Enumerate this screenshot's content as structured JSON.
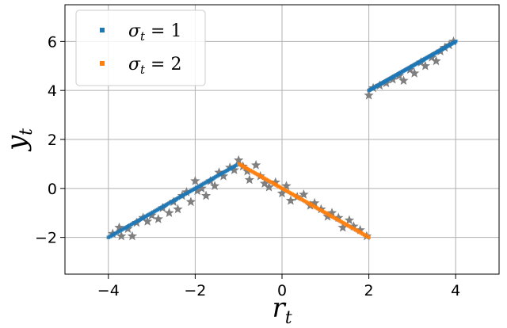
{
  "chart_data": {
    "type": "scatter",
    "title": "",
    "xlabel": {
      "base": "r",
      "sub": "t"
    },
    "ylabel": {
      "base": "y",
      "sub": "t"
    },
    "xlim": [
      -5,
      5
    ],
    "ylim": [
      -3.5,
      7.5
    ],
    "grid": true,
    "xticks": [
      {
        "value": -4,
        "label": "−4"
      },
      {
        "value": -2,
        "label": "−2"
      },
      {
        "value": 0,
        "label": "0"
      },
      {
        "value": 2,
        "label": "2"
      },
      {
        "value": 4,
        "label": "4"
      }
    ],
    "yticks": [
      {
        "value": -2,
        "label": "−2"
      },
      {
        "value": 0,
        "label": "0"
      },
      {
        "value": 2,
        "label": "2"
      },
      {
        "value": 4,
        "label": "4"
      },
      {
        "value": 6,
        "label": "6"
      }
    ],
    "legend": {
      "placement": "top-left",
      "entries": [
        {
          "label_base": "σ",
          "label_sub": "t",
          "label_rest": " = 1",
          "color": "#1f77b4"
        },
        {
          "label_base": "σ",
          "label_sub": "t",
          "label_rest": " = 2",
          "color": "#ff7f0e"
        }
      ]
    },
    "series": [
      {
        "name": "σt = 1",
        "color": "#1f77b4",
        "kind": "fitted-line",
        "segments": [
          {
            "x": [
              -4.0,
              -1.0
            ],
            "y": [
              -2.0,
              1.0
            ]
          },
          {
            "x": [
              2.0,
              4.0
            ],
            "y": [
              4.0,
              6.0
            ]
          }
        ]
      },
      {
        "name": "σt = 2",
        "color": "#ff7f0e",
        "kind": "fitted-line",
        "segments": [
          {
            "x": [
              -1.0,
              2.0
            ],
            "y": [
              1.0,
              -2.0
            ]
          }
        ]
      },
      {
        "kind": "observations",
        "marker": "star",
        "color": "#7f7f7f",
        "points": [
          [
            -3.9,
            -1.85
          ],
          [
            -3.75,
            -1.6
          ],
          [
            -3.7,
            -1.95
          ],
          [
            -3.55,
            -1.65
          ],
          [
            -3.45,
            -1.95
          ],
          [
            -3.35,
            -1.4
          ],
          [
            -3.2,
            -1.2
          ],
          [
            -3.1,
            -1.35
          ],
          [
            -3.0,
            -1.1
          ],
          [
            -2.85,
            -1.25
          ],
          [
            -2.75,
            -0.8
          ],
          [
            -2.6,
            -1.0
          ],
          [
            -2.5,
            -0.55
          ],
          [
            -2.4,
            -0.85
          ],
          [
            -2.3,
            -0.3
          ],
          [
            -2.2,
            -0.15
          ],
          [
            -2.1,
            -0.55
          ],
          [
            -2.0,
            0.3
          ],
          [
            -1.95,
            -0.1
          ],
          [
            -1.85,
            0.0
          ],
          [
            -1.75,
            -0.3
          ],
          [
            -1.65,
            0.3
          ],
          [
            -1.55,
            0.1
          ],
          [
            -1.45,
            0.65
          ],
          [
            -1.35,
            0.5
          ],
          [
            -1.2,
            0.85
          ],
          [
            -1.1,
            0.75
          ],
          [
            -1.0,
            1.15
          ],
          [
            -0.9,
            0.9
          ],
          [
            -0.8,
            0.7
          ],
          [
            -0.75,
            0.35
          ],
          [
            -0.6,
            0.95
          ],
          [
            -0.5,
            0.5
          ],
          [
            -0.4,
            0.2
          ],
          [
            -0.3,
            0.05
          ],
          [
            -0.15,
            0.25
          ],
          [
            0.0,
            -0.2
          ],
          [
            0.1,
            0.1
          ],
          [
            0.2,
            -0.5
          ],
          [
            0.35,
            -0.35
          ],
          [
            0.5,
            -0.25
          ],
          [
            0.65,
            -0.7
          ],
          [
            0.75,
            -0.6
          ],
          [
            0.9,
            -0.85
          ],
          [
            1.05,
            -1.15
          ],
          [
            1.15,
            -1.0
          ],
          [
            1.3,
            -1.2
          ],
          [
            1.4,
            -1.6
          ],
          [
            1.55,
            -1.3
          ],
          [
            1.65,
            -1.55
          ],
          [
            1.8,
            -1.7
          ],
          [
            1.95,
            -1.95
          ],
          [
            2.0,
            3.8
          ],
          [
            2.1,
            4.1
          ],
          [
            2.25,
            4.2
          ],
          [
            2.4,
            4.3
          ],
          [
            2.55,
            4.45
          ],
          [
            2.7,
            4.6
          ],
          [
            2.8,
            4.4
          ],
          [
            2.95,
            4.85
          ],
          [
            3.05,
            4.7
          ],
          [
            3.2,
            5.15
          ],
          [
            3.3,
            5.0
          ],
          [
            3.45,
            5.35
          ],
          [
            3.55,
            5.2
          ],
          [
            3.65,
            5.6
          ],
          [
            3.75,
            5.75
          ],
          [
            3.85,
            5.85
          ],
          [
            3.95,
            6.0
          ]
        ]
      }
    ]
  }
}
